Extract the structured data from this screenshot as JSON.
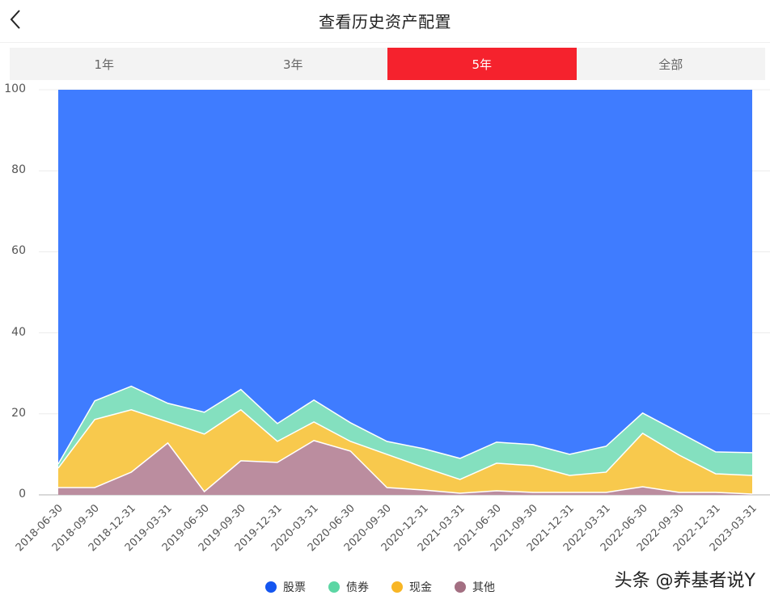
{
  "header": {
    "back_icon": "chevron-left-icon",
    "title": "查看历史资产配置"
  },
  "tabs": [
    {
      "label": "1年",
      "active": false
    },
    {
      "label": "3年",
      "active": false
    },
    {
      "label": "5年",
      "active": true
    },
    {
      "label": "全部",
      "active": false
    }
  ],
  "colors": {
    "accent": "#f5222d",
    "stock": "#3f7cff",
    "bond": "#84e0bf",
    "cash": "#f8c94d",
    "other": "#bb8d9f",
    "legend_stock": "#1456f0",
    "legend_bond": "#5cd6a4",
    "legend_cash": "#f8b625",
    "legend_other": "#a36f82"
  },
  "legend": [
    {
      "label": "股票",
      "key": "stock"
    },
    {
      "label": "债券",
      "key": "bond"
    },
    {
      "label": "现金",
      "key": "cash"
    },
    {
      "label": "其他",
      "key": "other"
    }
  ],
  "watermark": "头条 @养基者说Y",
  "chart_data": {
    "type": "area",
    "stacked": true,
    "title": "查看历史资产配置",
    "xlabel": "",
    "ylabel": "",
    "ylim": [
      0,
      100
    ],
    "yticks": [
      0,
      20,
      40,
      60,
      80,
      100
    ],
    "grid": true,
    "legend_position": "bottom",
    "categories": [
      "2018-06-30",
      "2018-09-30",
      "2018-12-31",
      "2019-03-31",
      "2019-06-30",
      "2019-09-30",
      "2019-12-31",
      "2020-03-31",
      "2020-06-30",
      "2020-09-30",
      "2020-12-31",
      "2021-03-31",
      "2021-06-30",
      "2021-09-30",
      "2021-12-31",
      "2022-03-31",
      "2022-06-30",
      "2022-09-30",
      "2022-12-31",
      "2023-03-31"
    ],
    "series": [
      {
        "name": "其他",
        "values": [
          1.8,
          1.8,
          5.6,
          12.8,
          0.8,
          8.4,
          8.0,
          13.4,
          10.8,
          1.8,
          1.2,
          0.4,
          1.0,
          0.6,
          0.6,
          0.6,
          2.0,
          0.6,
          0.6,
          0.2
        ]
      },
      {
        "name": "现金",
        "values": [
          4.8,
          16.8,
          15.4,
          5.2,
          14.2,
          12.6,
          5.2,
          4.6,
          2.4,
          8.2,
          5.6,
          3.4,
          6.8,
          6.6,
          4.2,
          5.0,
          13.2,
          9.2,
          4.6,
          4.6
        ]
      },
      {
        "name": "债券",
        "values": [
          1.0,
          4.6,
          5.8,
          4.6,
          5.4,
          5.0,
          4.4,
          5.4,
          4.6,
          3.2,
          4.6,
          5.2,
          5.2,
          5.2,
          5.2,
          6.4,
          5.0,
          5.6,
          5.4,
          5.6
        ]
      },
      {
        "name": "股票",
        "values": [
          92.4,
          76.8,
          73.2,
          77.4,
          79.6,
          74.0,
          82.4,
          76.6,
          82.2,
          86.8,
          88.6,
          91.0,
          87.0,
          87.6,
          90.0,
          88.0,
          79.8,
          84.6,
          89.4,
          89.6
        ]
      }
    ]
  }
}
